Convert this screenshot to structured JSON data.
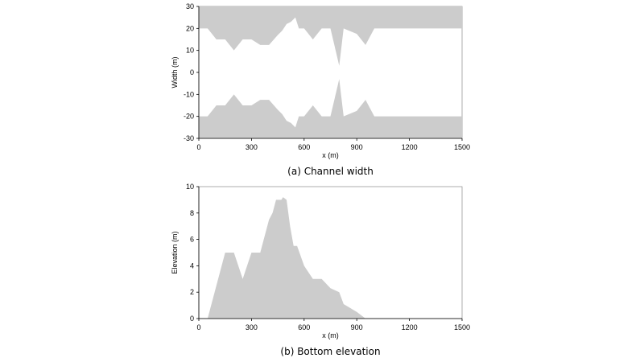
{
  "chart_data": [
    {
      "type": "area",
      "caption": "(a) Channel width",
      "title": "",
      "xlabel": "x (m)",
      "ylabel": "Width (m)",
      "xlim": [
        0,
        1500
      ],
      "ylim": [
        -30,
        30
      ],
      "xticks": [
        0,
        300,
        600,
        900,
        1200,
        1500
      ],
      "yticks": [
        30,
        20,
        10,
        0,
        -10,
        -20,
        -30
      ],
      "fill_color": "#cccccc",
      "grid": false,
      "series": [
        {
          "x": [
            0,
            50,
            100,
            150,
            200,
            250,
            300,
            350,
            400,
            450,
            475,
            500,
            525,
            550,
            570,
            600,
            650,
            700,
            750,
            800,
            825,
            900,
            950,
            1000,
            1500
          ],
          "values": [
            20,
            20,
            15,
            15,
            10,
            15,
            15,
            12.5,
            12.5,
            17,
            19,
            22,
            23,
            25,
            20,
            20,
            15,
            20,
            20,
            3,
            20,
            17.5,
            12.5,
            20,
            20
          ]
        },
        {
          "x": [
            0,
            50,
            100,
            150,
            200,
            250,
            300,
            350,
            400,
            450,
            475,
            500,
            525,
            550,
            570,
            600,
            650,
            700,
            750,
            800,
            825,
            900,
            950,
            1000,
            1500
          ],
          "values": [
            -20,
            -20,
            -15,
            -15,
            -10,
            -15,
            -15,
            -12.5,
            -12.5,
            -17,
            -19,
            -22,
            -23,
            -25,
            -20,
            -20,
            -15,
            -20,
            -20,
            -3,
            -20,
            -17.5,
            -12.5,
            -20,
            -20
          ]
        }
      ]
    },
    {
      "type": "area",
      "caption": "(b) Bottom elevation",
      "title": "",
      "xlabel": "x (m)",
      "ylabel": "Elevation (m)",
      "xlim": [
        0,
        1500
      ],
      "ylim": [
        0,
        10
      ],
      "xticks": [
        0,
        300,
        600,
        900,
        1200,
        1500
      ],
      "yticks": [
        10,
        8,
        6,
        4,
        2,
        0
      ],
      "fill_color": "#cccccc",
      "grid": false,
      "series": [
        {
          "x": [
            0,
            50,
            150,
            200,
            250,
            300,
            350,
            400,
            420,
            440,
            450,
            470,
            480,
            500,
            520,
            540,
            560,
            600,
            650,
            700,
            750,
            800,
            825,
            900,
            950,
            1000,
            1500
          ],
          "values": [
            0,
            0,
            5,
            5,
            3,
            5,
            5,
            7.5,
            8,
            9,
            9,
            9,
            9.2,
            9,
            7,
            5.5,
            5.5,
            4,
            3,
            3,
            2.3,
            2,
            1.1,
            0.5,
            0,
            0,
            0
          ]
        }
      ]
    }
  ]
}
